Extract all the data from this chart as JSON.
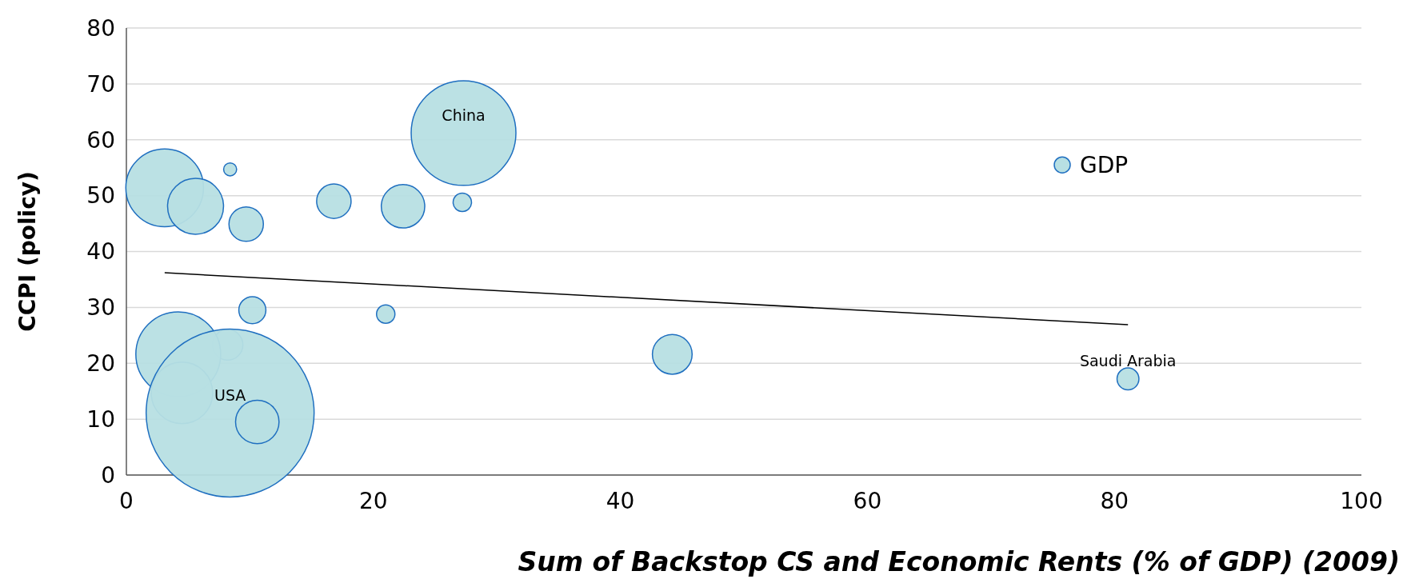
{
  "chart_data": {
    "type": "bubble",
    "xlabel": "Sum of Backstop CS and Economic Rents (% of GDP) (2009)",
    "ylabel": "CCPI (policy)",
    "xlim": [
      0,
      100
    ],
    "xticks": [
      0,
      20,
      40,
      60,
      80,
      100
    ],
    "ylim": [
      0,
      80
    ],
    "yticks": [
      0,
      10,
      20,
      30,
      40,
      50,
      60,
      70,
      80
    ],
    "grid": "y",
    "legend": "top right",
    "series": [
      {
        "name": "GDP",
        "color": "#b7dfe3",
        "x": [
          3.1,
          5.6,
          8.4,
          9.7,
          16.8,
          22.4,
          27.3,
          27.2,
          10.2,
          21.0,
          8.2,
          4.2,
          4.5,
          8.4,
          10.6,
          44.2,
          81.1
        ],
        "values": [
          51.4,
          48.1,
          54.7,
          44.9,
          49.0,
          48.1,
          61.2,
          48.8,
          29.5,
          28.8,
          23.3,
          21.6,
          14.7,
          11.1,
          9.5,
          21.6,
          17.2
        ],
        "sizes": [
          0.214,
          0.111,
          0.006,
          0.042,
          0.042,
          0.067,
          0.389,
          0.012,
          0.026,
          0.012,
          0.033,
          0.255,
          0.134,
          1,
          0.067,
          0.056,
          0.017
        ]
      },
      {
        "type": "line",
        "color": "#000000",
        "marker": "none",
        "x": [
          3.1,
          81.1
        ],
        "values": [
          36.2,
          26.9
        ]
      }
    ],
    "annotations": [
      {
        "text": "China",
        "x": 27.3,
        "y": 61.2
      },
      {
        "text": "USA",
        "x": 8.4,
        "y": 11.1
      },
      {
        "text": "Saudi Arabia",
        "x": 81.1,
        "y": 17.2
      }
    ]
  }
}
